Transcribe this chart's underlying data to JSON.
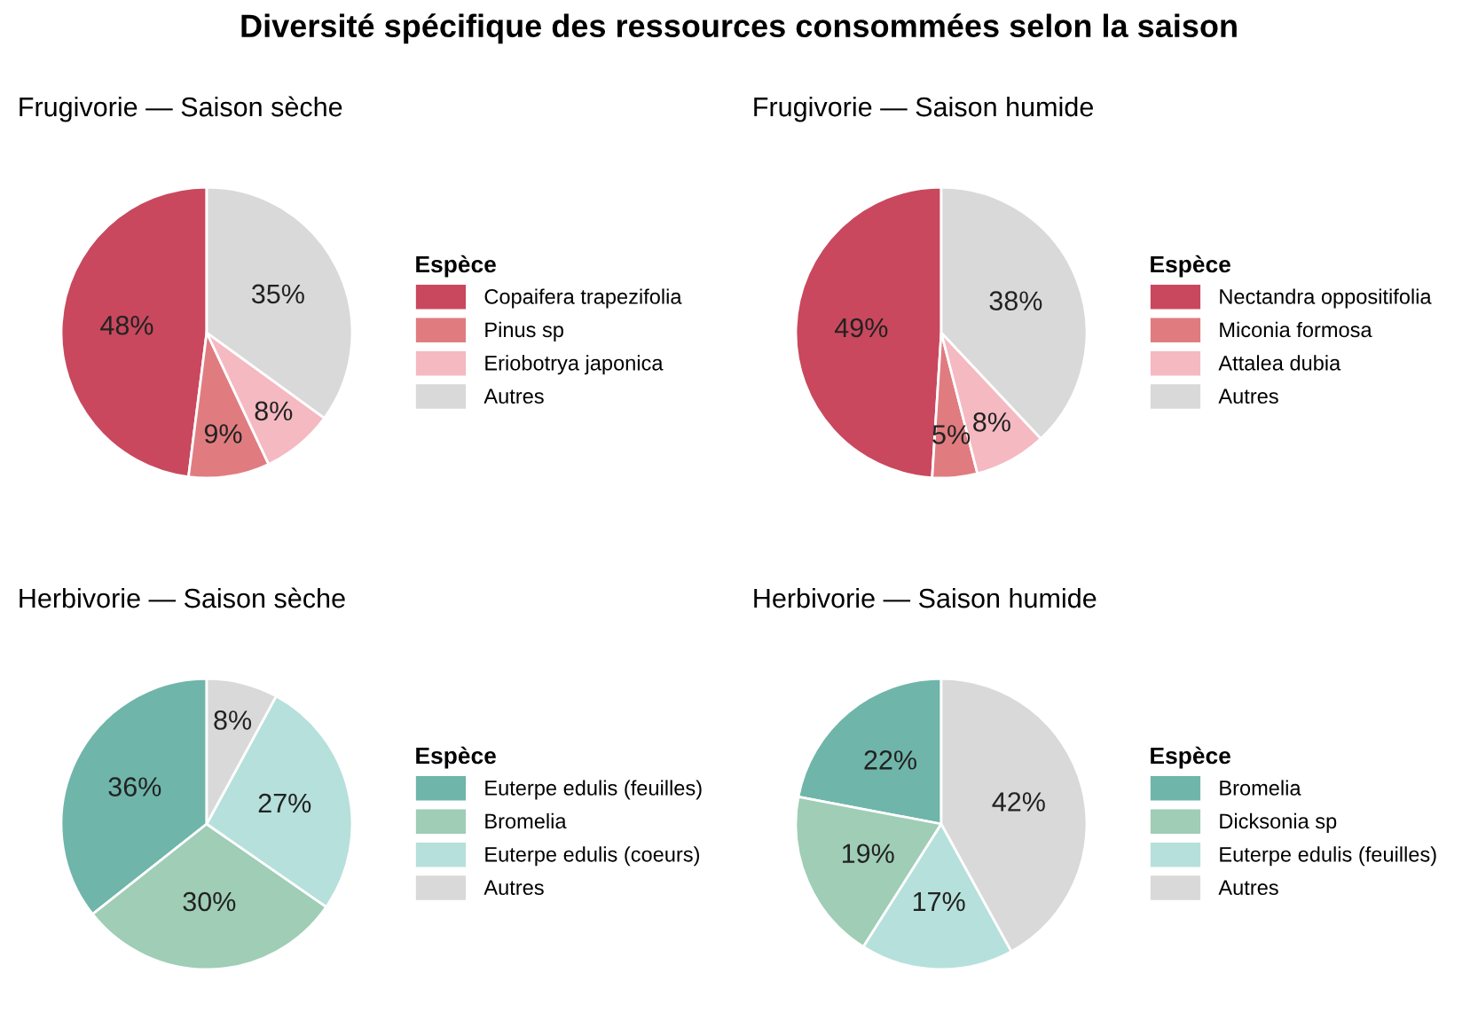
{
  "chart_data": [
    {
      "type": "pie",
      "title": "Diversité spécifique des ressources consommées selon la saison",
      "subtitle": "Frugivorie — Saison sèche",
      "legend_title": "Espèce",
      "legend": "right",
      "data_labels": true,
      "categories": [
        "Copaifera trapezifolia",
        "Pinus sp",
        "Eriobotrya japonica",
        "Autres"
      ],
      "values": [
        48,
        9,
        8,
        35
      ],
      "value_labels": [
        "48%",
        "9%",
        "8%",
        "35%"
      ],
      "colors": [
        "#c9485e",
        "#e07c80",
        "#f5b9c1",
        "#d9d9d9"
      ]
    },
    {
      "type": "pie",
      "subtitle": "Frugivorie — Saison humide",
      "legend_title": "Espèce",
      "legend": "right",
      "data_labels": true,
      "categories": [
        "Nectandra oppositifolia",
        "Miconia formosa",
        "Attalea dubia",
        "Autres"
      ],
      "values": [
        49,
        5,
        8,
        38
      ],
      "value_labels": [
        "49%",
        "5%",
        "8%",
        "38%"
      ],
      "colors": [
        "#c9485e",
        "#e07c80",
        "#f5b9c1",
        "#d9d9d9"
      ]
    },
    {
      "type": "pie",
      "subtitle": "Herbivorie — Saison sèche",
      "legend_title": "Espèce",
      "legend": "right",
      "data_labels": true,
      "categories": [
        "Euterpe edulis (feuilles)",
        "Bromelia",
        "Euterpe edulis (coeurs)",
        "Autres"
      ],
      "values": [
        36,
        30,
        27,
        8
      ],
      "value_labels": [
        "36%",
        "30%",
        "27%",
        "8%"
      ],
      "colors": [
        "#6fb5aa",
        "#9fcdb6",
        "#b6e0db",
        "#d9d9d9"
      ]
    },
    {
      "type": "pie",
      "subtitle": "Herbivorie — Saison humide",
      "legend_title": "Espèce",
      "legend": "right",
      "data_labels": true,
      "categories": [
        "Bromelia",
        "Dicksonia sp",
        "Euterpe edulis (feuilles)",
        "Autres"
      ],
      "values": [
        22,
        19,
        17,
        42
      ],
      "value_labels": [
        "22%",
        "19%",
        "17%",
        "42%"
      ],
      "colors": [
        "#6fb5aa",
        "#9fcdb6",
        "#b6e0db",
        "#d9d9d9"
      ]
    }
  ]
}
